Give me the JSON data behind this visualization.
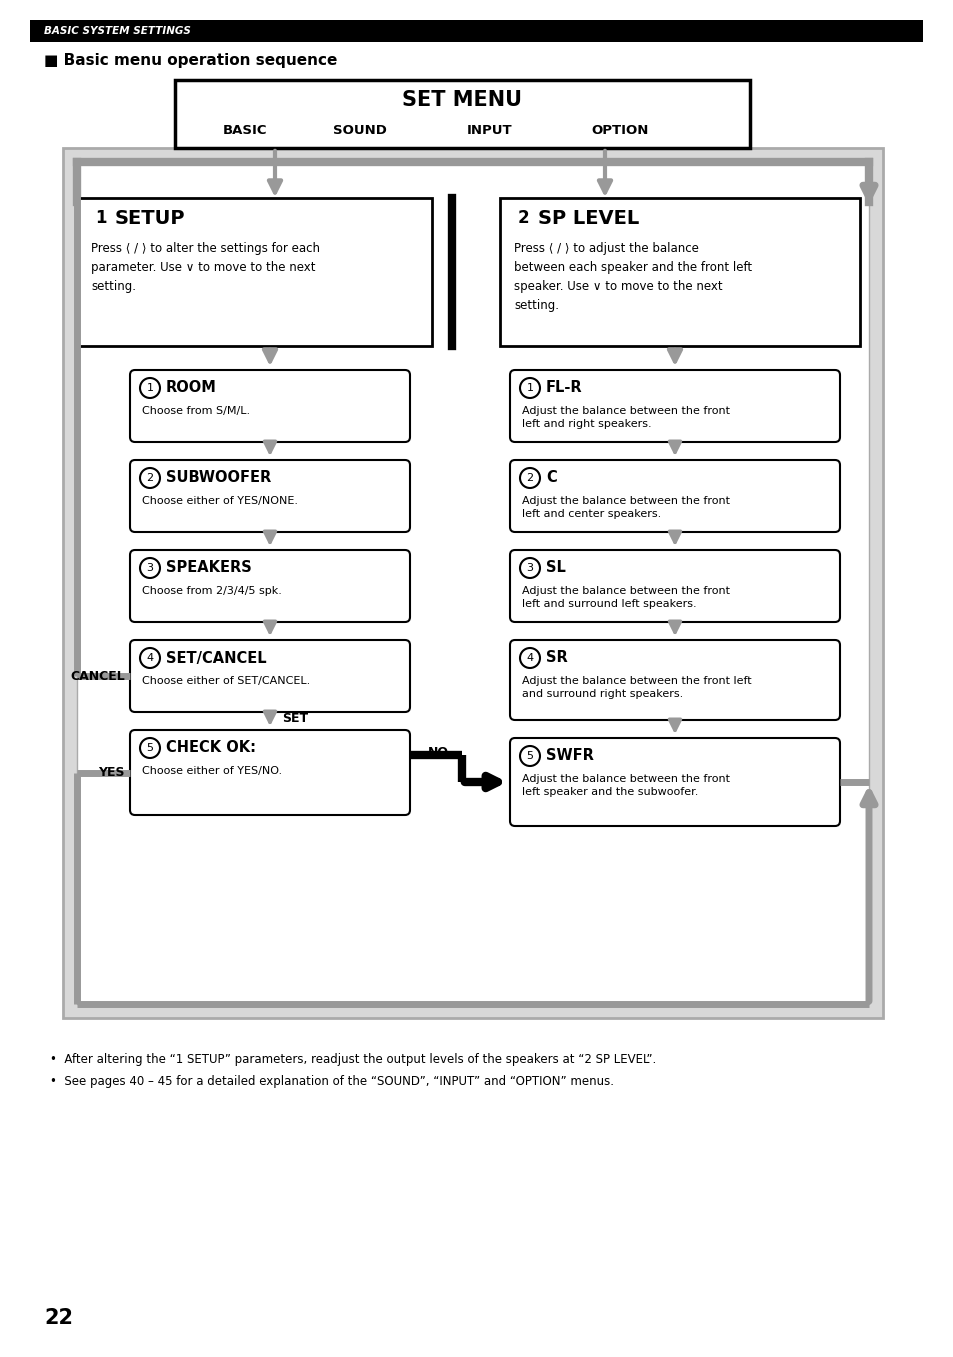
{
  "bg_color": "#ffffff",
  "header_bar_color": "#000000",
  "header_text": "BASIC SYSTEM SETTINGS",
  "header_text_color": "#ffffff",
  "section_title": "■ Basic menu operation sequence",
  "page_number": "22",
  "set_menu_title": "SET MENU",
  "set_menu_items_left": "BASIC",
  "set_menu_items_c1": "SOUND",
  "set_menu_items_c2": "INPUT",
  "set_menu_items_right": "OPTION",
  "box1_title_num": "1",
  "box1_title_text": "SETUP",
  "box1_desc": "Press ⟨ / ⟩ to alter the settings for each\nparameter. Use ∨ to move to the next\nsetting.",
  "box2_title_num": "2",
  "box2_title_text": "SP LEVEL",
  "box2_desc": "Press ⟨ / ⟩ to adjust the balance\nbetween each speaker and the front left\nspeaker. Use ∨ to move to the next\nsetting.",
  "left_items": [
    {
      "num": "1",
      "title": "ROOM",
      "desc": "Choose from S/M/L."
    },
    {
      "num": "2",
      "title": "SUBWOOFER",
      "desc": "Choose either of YES/NONE."
    },
    {
      "num": "3",
      "title": "SPEAKERS",
      "desc": "Choose from 2/3/4/5 spk."
    },
    {
      "num": "4",
      "title": "SET/CANCEL",
      "desc": "Choose either of SET/CANCEL."
    },
    {
      "num": "5",
      "title": "CHECK OK:",
      "desc": "Choose either of YES/NO."
    }
  ],
  "right_items": [
    {
      "num": "1",
      "title": "FL-R",
      "desc": "Adjust the balance between the front\nleft and right speakers."
    },
    {
      "num": "2",
      "title": "C",
      "desc": "Adjust the balance between the front\nleft and center speakers."
    },
    {
      "num": "3",
      "title": "SL",
      "desc": "Adjust the balance between the front\nleft and surround left speakers."
    },
    {
      "num": "4",
      "title": "SR",
      "desc": "Adjust the balance between the front left\nand surround right speakers."
    },
    {
      "num": "5",
      "title": "SWFR",
      "desc": "Adjust the balance between the front\nleft speaker and the subwoofer."
    }
  ],
  "cancel_label": "CANCEL",
  "set_label": "SET",
  "yes_label": "YES",
  "no_label": "NO",
  "note1": "•  After altering the “1 SETUP” parameters, readjust the output levels of the speakers at “2 SP LEVEL”.",
  "note2": "•  See pages 40 – 45 for a detailed explanation of the “SOUND”, “INPUT” and “OPTION” menus.",
  "arrow_gray": "#999999",
  "border_gray": "#aaaaaa",
  "outer_fill": "#d8d8d8"
}
